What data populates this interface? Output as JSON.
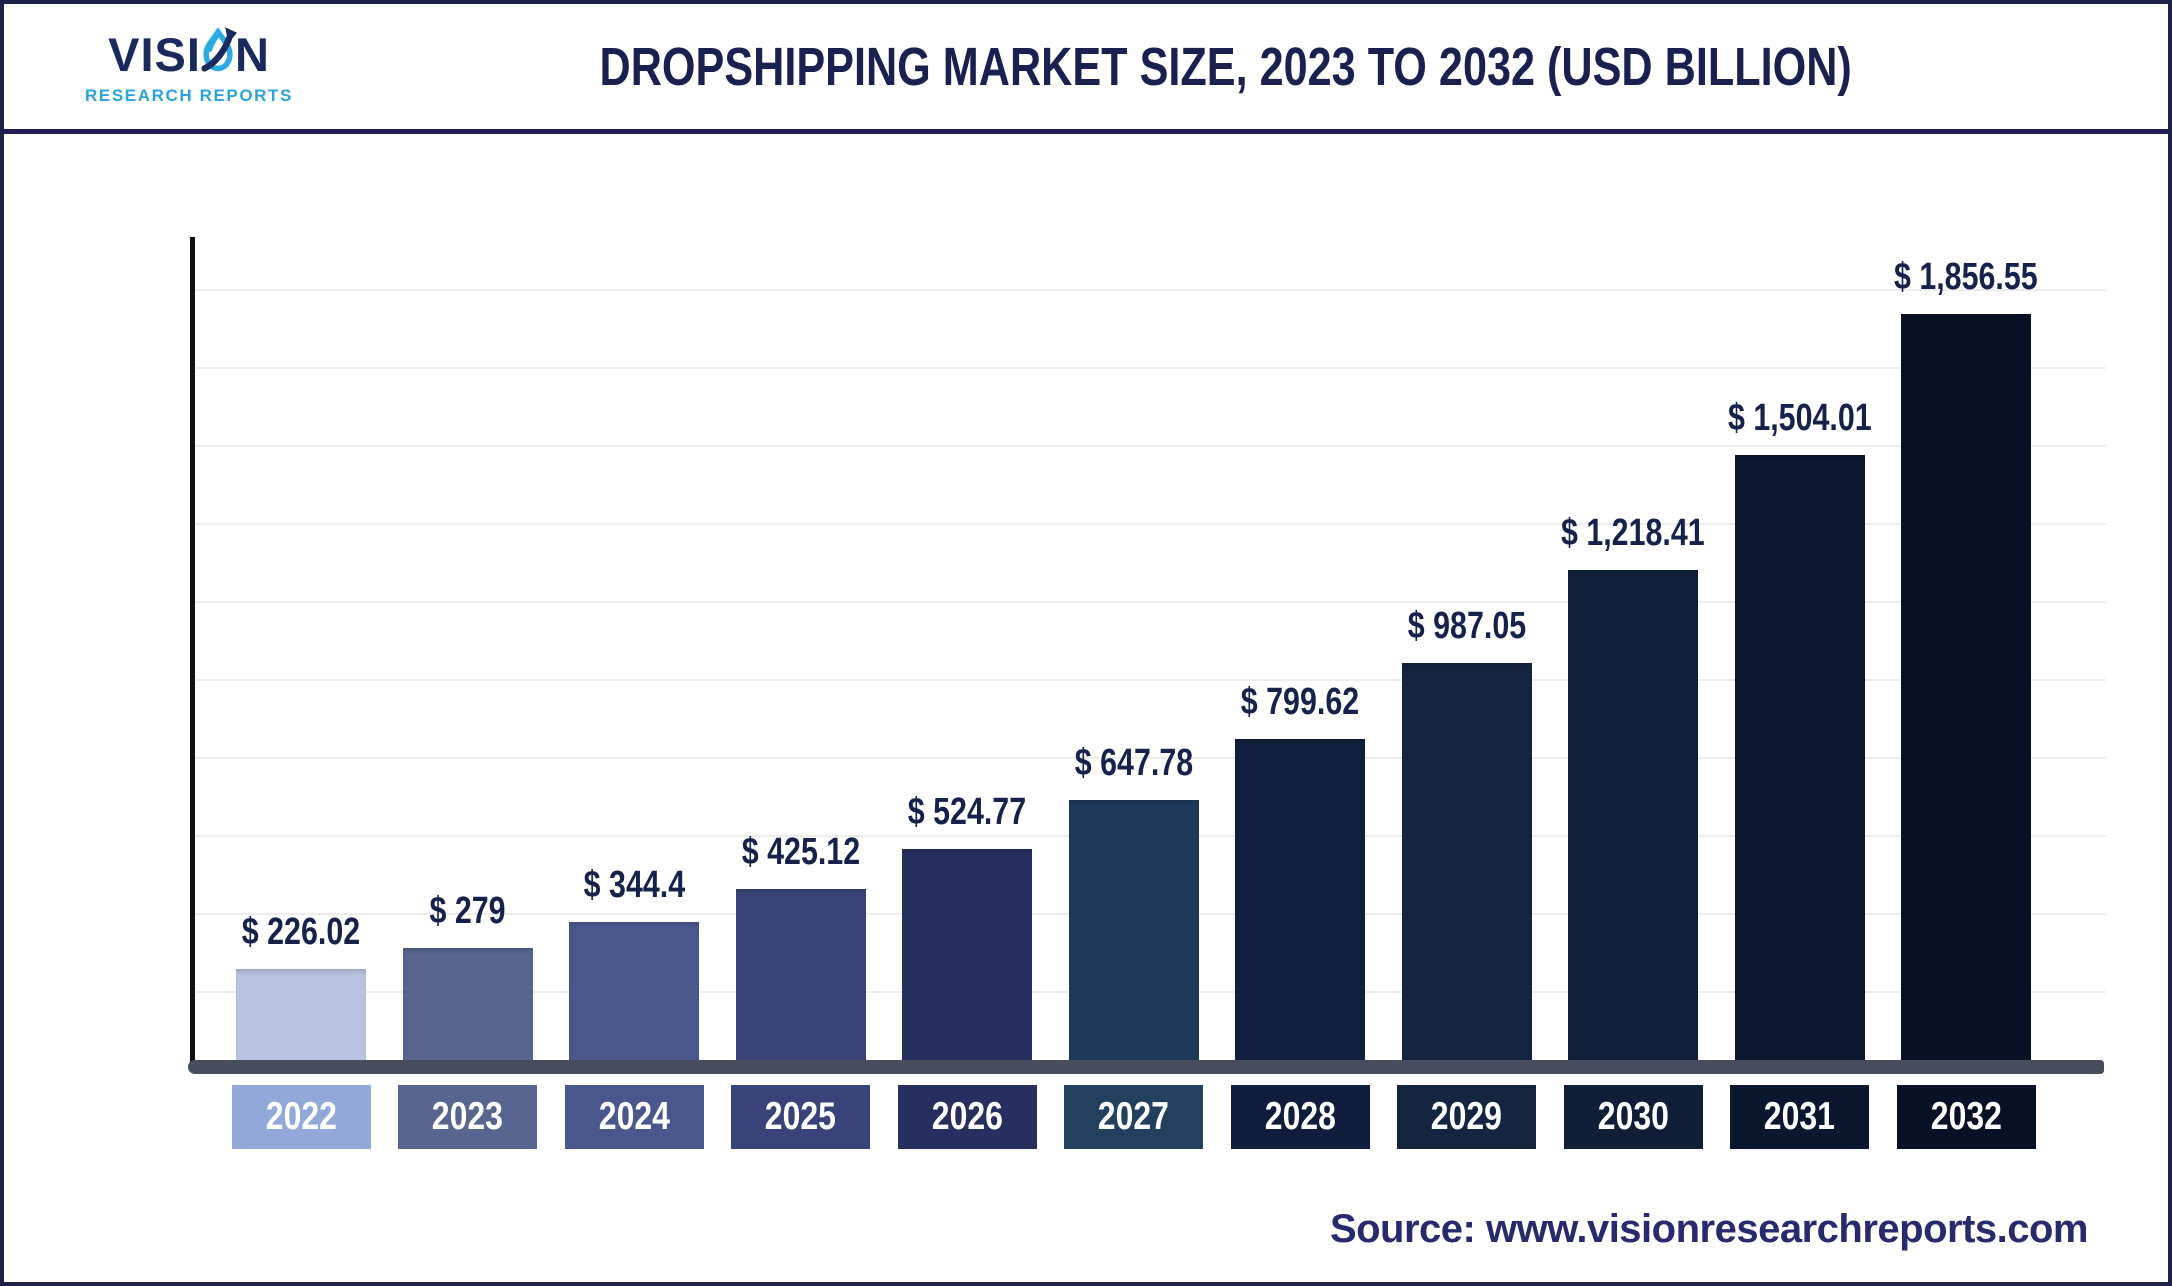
{
  "header": {
    "logo": {
      "text_before_icon": "VISI",
      "text_after_icon": "N",
      "subtitle": "RESEARCH REPORTS",
      "wordmark_color": "#1b2a5e",
      "subtitle_color": "#29a3e0",
      "icon_name": "growth-arrow-drop-icon"
    },
    "title": "DROPSHIPPING MARKET SIZE, 2023 TO 2032 (USD BILLION)",
    "title_color": "#1a2150"
  },
  "chart_data": {
    "type": "bar",
    "title": "DROPSHIPPING MARKET SIZE, 2023 TO 2032 (USD BILLION)",
    "categories": [
      "2022",
      "2023",
      "2024",
      "2025",
      "2026",
      "2027",
      "2028",
      "2029",
      "2030",
      "2031",
      "2032"
    ],
    "values": [
      226.02,
      279,
      344.4,
      425.12,
      524.77,
      647.78,
      799.62,
      987.05,
      1218.41,
      1504.01,
      1856.55
    ],
    "value_labels": [
      "$ 226.02",
      "$ 279",
      "$ 344.4",
      "$ 425.12",
      "$ 524.77",
      "$ 647.78",
      "$ 799.62",
      "$ 987.05",
      "$ 1,218.41",
      "$ 1,504.01",
      "$ 1,856.55"
    ],
    "bar_colors": [
      "#b9c3e1",
      "#57658f",
      "#4a578d",
      "#3a4478",
      "#272f60",
      "#1e3a5a",
      "#12203f",
      "#152540",
      "#11203a",
      "#0c1831",
      "#081126"
    ],
    "category_box_colors": [
      "#92a8d9",
      "#57658f",
      "#4a578d",
      "#39437a",
      "#272f60",
      "#23405e",
      "#101d3c",
      "#15253f",
      "#101e38",
      "#0b172f",
      "#081126"
    ],
    "value_label_color": "#16224c",
    "category_label_color": "#ffffff",
    "xlabel": "",
    "ylabel": "",
    "unit": "USD Billion",
    "ylim": [
      0,
      2000
    ],
    "gridline_count": 10,
    "grid": "horizontal",
    "gridline_color": "#ececec",
    "axis_color": "#474d5c",
    "legend": "none"
  },
  "footer": {
    "source_text": "Source: www.visionresearchreports.com",
    "source_color": "#272a6e"
  }
}
